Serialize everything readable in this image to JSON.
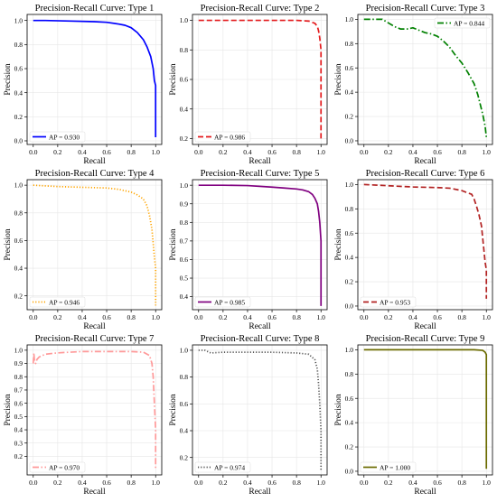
{
  "figure": {
    "background": "#ffffff",
    "grid_color": "#e6e6e6",
    "axis_color": "#000000"
  },
  "chart_data": [
    {
      "type": "line",
      "title": "Precision-Recall Curve: Type 1",
      "xlabel": "Recall",
      "ylabel": "Precision",
      "xlim": [
        -0.05,
        1.05
      ],
      "ylim": [
        -0.03,
        1.05
      ],
      "xticks": [
        "0.0",
        "0.2",
        "0.4",
        "0.6",
        "0.8",
        "1.0"
      ],
      "yticks": [
        "0.0",
        "0.2",
        "0.4",
        "0.6",
        "0.8",
        "1.0"
      ],
      "grid": true,
      "legend_placement": "lower-left",
      "series": [
        {
          "legend": "AP = 0.930",
          "color": "#0000ff",
          "style": "solid",
          "x": [
            0.0,
            0.1,
            0.3,
            0.5,
            0.6,
            0.7,
            0.75,
            0.8,
            0.85,
            0.9,
            0.93,
            0.96,
            0.98,
            0.99,
            1.0,
            1.0
          ],
          "y": [
            1.0,
            1.0,
            0.995,
            0.99,
            0.985,
            0.97,
            0.96,
            0.94,
            0.9,
            0.84,
            0.78,
            0.7,
            0.6,
            0.5,
            0.46,
            0.03
          ]
        }
      ]
    },
    {
      "type": "line",
      "title": "Precision-Recall Curve: Type 2",
      "xlabel": "Recall",
      "ylabel": "Precision",
      "xlim": [
        -0.05,
        1.05
      ],
      "ylim": [
        0.16,
        1.04
      ],
      "xticks": [
        "0.0",
        "0.2",
        "0.4",
        "0.6",
        "0.8",
        "1.0"
      ],
      "yticks": [
        "0.2",
        "0.4",
        "0.6",
        "0.8",
        "1.0"
      ],
      "grid": true,
      "legend_placement": "lower-left",
      "series": [
        {
          "legend": "AP = 0.986",
          "color": "#e41a1c",
          "style": "dashed",
          "x": [
            0.0,
            0.3,
            0.6,
            0.8,
            0.9,
            0.95,
            0.97,
            0.98,
            0.99,
            1.0,
            1.0
          ],
          "y": [
            1.0,
            1.0,
            1.0,
            1.0,
            0.995,
            0.98,
            0.96,
            0.93,
            0.88,
            0.8,
            0.2
          ]
        }
      ]
    },
    {
      "type": "line",
      "title": "Precision-Recall Curve: Type 3",
      "xlabel": "Recall",
      "ylabel": "Precision",
      "xlim": [
        -0.05,
        1.05
      ],
      "ylim": [
        -0.03,
        1.04
      ],
      "xticks": [
        "0.0",
        "0.2",
        "0.4",
        "0.6",
        "0.8",
        "1.0"
      ],
      "yticks": [
        "0.0",
        "0.2",
        "0.4",
        "0.6",
        "0.8",
        "1.0"
      ],
      "grid": true,
      "legend_placement": "upper-right",
      "series": [
        {
          "legend": "AP = 0.844",
          "color": "#008000",
          "style": "dashdot",
          "x": [
            0.0,
            0.15,
            0.2,
            0.25,
            0.3,
            0.35,
            0.4,
            0.45,
            0.5,
            0.55,
            0.6,
            0.65,
            0.7,
            0.75,
            0.8,
            0.85,
            0.9,
            0.93,
            0.95,
            0.97,
            0.99,
            1.0
          ],
          "y": [
            1.0,
            1.0,
            0.97,
            0.94,
            0.92,
            0.92,
            0.93,
            0.91,
            0.89,
            0.88,
            0.86,
            0.82,
            0.77,
            0.7,
            0.64,
            0.56,
            0.47,
            0.38,
            0.3,
            0.22,
            0.12,
            0.03
          ]
        }
      ]
    },
    {
      "type": "line",
      "title": "Precision-Recall Curve: Type 4",
      "xlabel": "Recall",
      "ylabel": "Precision",
      "xlim": [
        -0.05,
        1.05
      ],
      "ylim": [
        0.1,
        1.04
      ],
      "xticks": [
        "0.0",
        "0.2",
        "0.4",
        "0.6",
        "0.8",
        "1.0"
      ],
      "yticks": [
        "0.2",
        "0.4",
        "0.6",
        "0.8",
        "1.0"
      ],
      "grid": true,
      "legend_placement": "lower-left",
      "series": [
        {
          "legend": "AP = 0.946",
          "color": "#ffa500",
          "style": "dotted",
          "x": [
            0.0,
            0.2,
            0.4,
            0.6,
            0.7,
            0.8,
            0.85,
            0.9,
            0.93,
            0.95,
            0.97,
            0.98,
            0.99,
            1.0,
            1.0
          ],
          "y": [
            1.0,
            0.99,
            0.985,
            0.98,
            0.97,
            0.95,
            0.93,
            0.9,
            0.85,
            0.78,
            0.68,
            0.58,
            0.48,
            0.4,
            0.13
          ]
        }
      ]
    },
    {
      "type": "line",
      "title": "Precision-Recall Curve: Type 5",
      "xlabel": "Recall",
      "ylabel": "Precision",
      "xlim": [
        -0.05,
        1.05
      ],
      "ylim": [
        0.33,
        1.03
      ],
      "xticks": [
        "0.0",
        "0.2",
        "0.4",
        "0.6",
        "0.8",
        "1.0"
      ],
      "yticks": [
        "0.4",
        "0.5",
        "0.6",
        "0.7",
        "0.8",
        "0.9",
        "1.0"
      ],
      "grid": true,
      "legend_placement": "lower-left",
      "series": [
        {
          "legend": "AP = 0.985",
          "color": "#800080",
          "style": "solid",
          "x": [
            0.0,
            0.2,
            0.4,
            0.6,
            0.7,
            0.8,
            0.85,
            0.9,
            0.93,
            0.95,
            0.97,
            0.98,
            0.99,
            1.0,
            1.0
          ],
          "y": [
            1.0,
            1.0,
            0.998,
            0.99,
            0.985,
            0.98,
            0.975,
            0.965,
            0.95,
            0.93,
            0.9,
            0.86,
            0.8,
            0.7,
            0.35
          ]
        }
      ]
    },
    {
      "type": "line",
      "title": "Precision-Recall Curve: Type 6",
      "xlabel": "Recall",
      "ylabel": "Precision",
      "xlim": [
        -0.05,
        1.05
      ],
      "ylim": [
        -0.03,
        1.04
      ],
      "xticks": [
        "0.0",
        "0.2",
        "0.4",
        "0.6",
        "0.8",
        "1.0"
      ],
      "yticks": [
        "0.0",
        "0.2",
        "0.4",
        "0.6",
        "0.8",
        "1.0"
      ],
      "grid": true,
      "legend_placement": "lower-left",
      "series": [
        {
          "legend": "AP = 0.953",
          "color": "#b22222",
          "style": "dashed",
          "x": [
            0.0,
            0.2,
            0.4,
            0.6,
            0.7,
            0.8,
            0.85,
            0.88,
            0.9,
            0.92,
            0.94,
            0.96,
            0.97,
            0.98,
            0.99,
            1.0,
            1.0
          ],
          "y": [
            1.0,
            0.99,
            0.98,
            0.975,
            0.97,
            0.95,
            0.93,
            0.92,
            0.88,
            0.82,
            0.75,
            0.66,
            0.56,
            0.46,
            0.36,
            0.3,
            0.06
          ]
        }
      ]
    },
    {
      "type": "line",
      "title": "Precision-Recall Curve: Type 7",
      "xlabel": "Recall",
      "ylabel": "Precision",
      "xlim": [
        -0.05,
        1.05
      ],
      "ylim": [
        0.06,
        1.04
      ],
      "xticks": [
        "0.0",
        "0.2",
        "0.4",
        "0.6",
        "0.8",
        "1.0"
      ],
      "yticks": [
        "0.2",
        "0.3",
        "0.4",
        "0.5",
        "0.6",
        "0.7",
        "0.8",
        "0.9",
        "1.0"
      ],
      "grid": true,
      "legend_placement": "lower-left",
      "series": [
        {
          "legend": "AP = 0.970",
          "color": "#ff9999",
          "style": "dashdot",
          "x": [
            0.0,
            0.005,
            0.01,
            0.02,
            0.03,
            0.05,
            0.1,
            0.2,
            0.4,
            0.6,
            0.8,
            0.9,
            0.95,
            0.97,
            0.98,
            0.99,
            1.0,
            1.0
          ],
          "y": [
            0.9,
            0.98,
            0.92,
            0.9,
            0.93,
            0.95,
            0.97,
            0.98,
            0.99,
            0.99,
            0.99,
            0.985,
            0.96,
            0.9,
            0.8,
            0.6,
            0.4,
            0.1
          ]
        }
      ]
    },
    {
      "type": "line",
      "title": "Precision-Recall Curve: Type 8",
      "xlabel": "Recall",
      "ylabel": "Precision",
      "xlim": [
        -0.05,
        1.05
      ],
      "ylim": [
        0.07,
        1.04
      ],
      "xticks": [
        "0.0",
        "0.2",
        "0.4",
        "0.6",
        "0.8",
        "1.0"
      ],
      "yticks": [
        "0.2",
        "0.4",
        "0.6",
        "0.8",
        "1.0"
      ],
      "grid": true,
      "legend_placement": "lower-left",
      "series": [
        {
          "legend": "AP = 0.974",
          "color": "#555555",
          "style": "dotted",
          "x": [
            0.0,
            0.05,
            0.1,
            0.2,
            0.4,
            0.6,
            0.8,
            0.9,
            0.95,
            0.97,
            0.98,
            0.99,
            1.0,
            1.0
          ],
          "y": [
            1.0,
            1.0,
            0.98,
            0.985,
            0.985,
            0.985,
            0.98,
            0.97,
            0.93,
            0.86,
            0.75,
            0.6,
            0.4,
            0.1
          ]
        }
      ]
    },
    {
      "type": "line",
      "title": "Precision-Recall Curve: Type 9",
      "xlabel": "Recall",
      "ylabel": "Precision",
      "xlim": [
        -0.05,
        1.05
      ],
      "ylim": [
        -0.03,
        1.04
      ],
      "xticks": [
        "0.0",
        "0.2",
        "0.4",
        "0.6",
        "0.8",
        "1.0"
      ],
      "yticks": [
        "0.0",
        "0.2",
        "0.4",
        "0.6",
        "0.8",
        "1.0"
      ],
      "grid": true,
      "legend_placement": "lower-left",
      "series": [
        {
          "legend": "AP = 1.000",
          "color": "#6b6b00",
          "style": "solid",
          "x": [
            0.0,
            0.5,
            0.9,
            0.97,
            0.99,
            1.0,
            1.0
          ],
          "y": [
            1.0,
            1.0,
            1.0,
            0.995,
            0.98,
            0.96,
            0.02
          ]
        }
      ]
    }
  ]
}
